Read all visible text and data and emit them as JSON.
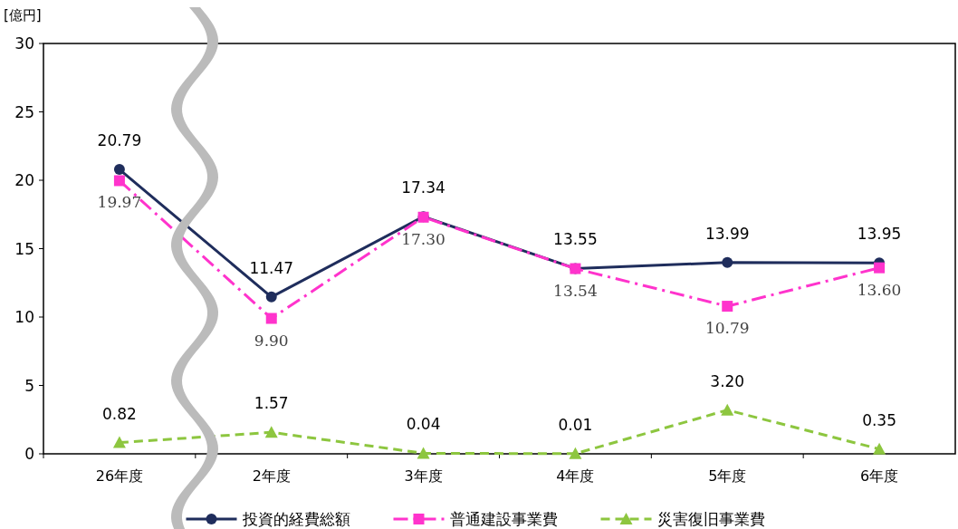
{
  "chart_data": {
    "type": "line",
    "ylabel": "[億円]",
    "categories": [
      "26年度",
      "2年度",
      "3年度",
      "4年度",
      "5年度",
      "6年度"
    ],
    "series": [
      {
        "name": "投資的経費総額",
        "color": "#1f2d5c",
        "marker": "circle",
        "line_style": "solid",
        "values": [
          20.79,
          11.47,
          17.34,
          13.55,
          13.99,
          13.95
        ],
        "value_labels": [
          "20.79",
          "11.47",
          "17.34",
          "13.55",
          "13.99",
          "13.95"
        ]
      },
      {
        "name": "普通建設事業費",
        "color": "#ff33cc",
        "marker": "square",
        "line_style": "dashdot",
        "values": [
          19.97,
          9.9,
          17.3,
          13.54,
          10.79,
          13.6
        ],
        "value_labels": [
          "19.97",
          "9.90",
          "17.30",
          "13.54",
          "10.79",
          "13.60"
        ]
      },
      {
        "name": "災害復旧事業費",
        "color": "#8dc63f",
        "marker": "triangle",
        "line_style": "dashed",
        "values": [
          0.82,
          1.57,
          0.04,
          0.01,
          3.2,
          0.35
        ],
        "value_labels": [
          "0.82",
          "1.57",
          "0.04",
          "0.01",
          "3.20",
          "0.35"
        ]
      }
    ],
    "ylim": [
      0,
      30
    ],
    "yticks": [
      0,
      5,
      10,
      15,
      20,
      25,
      30
    ],
    "grid": false,
    "legend": "bottom"
  }
}
